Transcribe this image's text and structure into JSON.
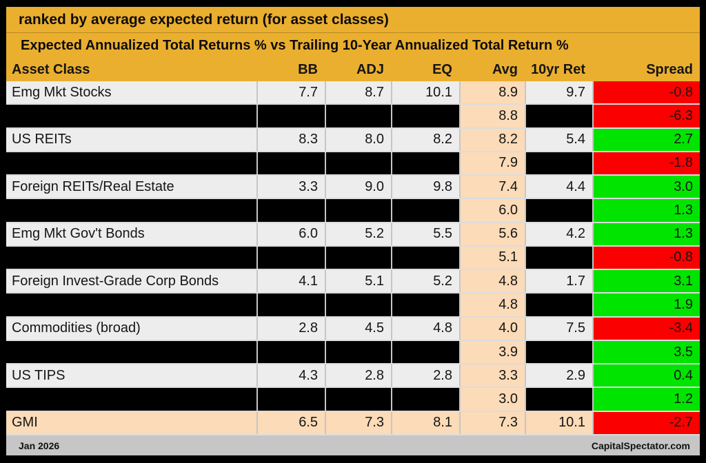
{
  "chart_data": {
    "type": "table",
    "title": "ranked by average expected return (for asset classes)",
    "subtitle": "Expected Annualized Total Returns % vs Trailing 10-Year Annualized Total Return %",
    "columns": [
      "Asset Class",
      "BB",
      "ADJ",
      "EQ",
      "Avg",
      "10yr Ret",
      "Spread"
    ],
    "rows": [
      {
        "name": "Emg Mkt Stocks",
        "redacted": false,
        "highlight": false,
        "bb": "7.7",
        "adj": "8.7",
        "eq": "10.1",
        "avg": "8.9",
        "ret10": "9.7",
        "spread": "-0.8"
      },
      {
        "name": "",
        "redacted": true,
        "highlight": false,
        "bb": "",
        "adj": "",
        "eq": "",
        "avg": "8.8",
        "ret10": "",
        "spread": "-6.3"
      },
      {
        "name": "US REITs",
        "redacted": false,
        "highlight": false,
        "bb": "8.3",
        "adj": "8.0",
        "eq": "8.2",
        "avg": "8.2",
        "ret10": "5.4",
        "spread": "2.7"
      },
      {
        "name": "",
        "redacted": true,
        "highlight": false,
        "bb": "",
        "adj": "",
        "eq": "",
        "avg": "7.9",
        "ret10": "",
        "spread": "-1.8"
      },
      {
        "name": "Foreign REITs/Real Estate",
        "redacted": false,
        "highlight": false,
        "bb": "3.3",
        "adj": "9.0",
        "eq": "9.8",
        "avg": "7.4",
        "ret10": "4.4",
        "spread": "3.0"
      },
      {
        "name": "",
        "redacted": true,
        "highlight": false,
        "bb": "",
        "adj": "",
        "eq": "",
        "avg": "6.0",
        "ret10": "",
        "spread": "1.3"
      },
      {
        "name": "Emg Mkt Gov't Bonds",
        "redacted": false,
        "highlight": false,
        "bb": "6.0",
        "adj": "5.2",
        "eq": "5.5",
        "avg": "5.6",
        "ret10": "4.2",
        "spread": "1.3"
      },
      {
        "name": "",
        "redacted": true,
        "highlight": false,
        "bb": "",
        "adj": "",
        "eq": "",
        "avg": "5.1",
        "ret10": "",
        "spread": "-0.8"
      },
      {
        "name": "Foreign Invest-Grade Corp Bonds",
        "redacted": false,
        "highlight": false,
        "bb": "4.1",
        "adj": "5.1",
        "eq": "5.2",
        "avg": "4.8",
        "ret10": "1.7",
        "spread": "3.1"
      },
      {
        "name": "",
        "redacted": true,
        "highlight": false,
        "bb": "",
        "adj": "",
        "eq": "",
        "avg": "4.8",
        "ret10": "",
        "spread": "1.9"
      },
      {
        "name": "Commodities (broad)",
        "redacted": false,
        "highlight": false,
        "bb": "2.8",
        "adj": "4.5",
        "eq": "4.8",
        "avg": "4.0",
        "ret10": "7.5",
        "spread": "-3.4"
      },
      {
        "name": "",
        "redacted": true,
        "highlight": false,
        "bb": "",
        "adj": "",
        "eq": "",
        "avg": "3.9",
        "ret10": "",
        "spread": "3.5"
      },
      {
        "name": "US TIPS",
        "redacted": false,
        "highlight": false,
        "bb": "4.3",
        "adj": "2.8",
        "eq": "2.8",
        "avg": "3.3",
        "ret10": "2.9",
        "spread": "0.4"
      },
      {
        "name": "",
        "redacted": true,
        "highlight": false,
        "bb": "",
        "adj": "",
        "eq": "",
        "avg": "3.0",
        "ret10": "",
        "spread": "1.2"
      },
      {
        "name": "GMI",
        "redacted": false,
        "highlight": true,
        "bb": "6.5",
        "adj": "7.3",
        "eq": "8.1",
        "avg": "7.3",
        "ret10": "10.1",
        "spread": "-2.7"
      }
    ],
    "footer_left": "Jan 2026",
    "footer_right": "CapitalSpectator.com"
  },
  "colors": {
    "header_bg": "#EBAF2F",
    "row_bg": "#EDEDED",
    "redacted_bg": "#000000",
    "avg_highlight_bg": "#FBDBB8",
    "spread_positive": "#00E400",
    "spread_negative": "#FB0000",
    "footer_bg": "#C6C6C6"
  }
}
